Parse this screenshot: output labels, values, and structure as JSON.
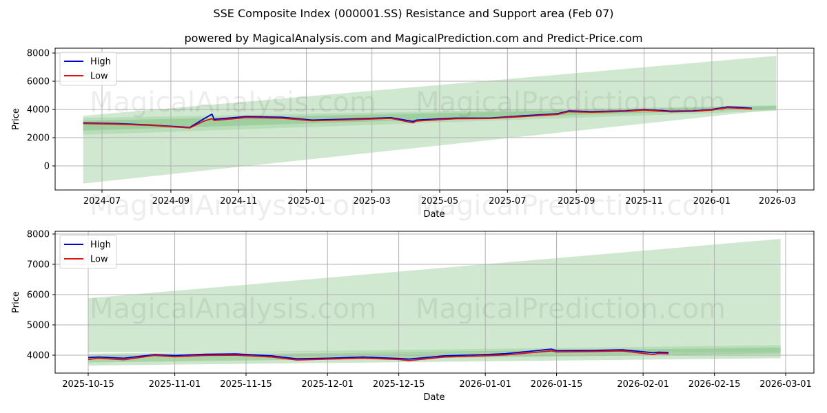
{
  "header": {
    "title": "SSE Composite Index (000001.SS) Resistance and Support area (Feb 07)",
    "subtitle": "powered by MagicalAnalysis.com and MagicalPrediction.com and Predict-Price.com"
  },
  "watermarks": [
    "MagicalAnalysis.com",
    "MagicalPrediction.com"
  ],
  "colors": {
    "high": "#0000cc",
    "low": "#dd1111",
    "band_light": "#a9d5a9",
    "band_dark": "#7fbf7f",
    "grid": "#b0b0b0"
  },
  "chart_data": [
    {
      "type": "line",
      "title": "",
      "xlabel": "Date",
      "ylabel": "Price",
      "x_ticks": [
        "2024-07",
        "2024-09",
        "2024-11",
        "2025-01",
        "2025-03",
        "2025-05",
        "2025-07",
        "2025-09",
        "2025-11",
        "2026-01",
        "2026-03"
      ],
      "y_ticks": [
        0,
        2000,
        4000,
        6000,
        8000
      ],
      "ylim": [
        -1800,
        8300
      ],
      "grid": true,
      "legend": {
        "position": "upper left",
        "entries": [
          "High",
          "Low"
        ]
      },
      "series": [
        {
          "name": "High",
          "color": "#0000cc",
          "x": [
            "2024-06-14",
            "2024-07-15",
            "2024-08-15",
            "2024-09-18",
            "2024-09-30",
            "2024-10-08",
            "2024-10-10",
            "2024-11-08",
            "2024-12-10",
            "2025-01-06",
            "2025-02-10",
            "2025-03-18",
            "2025-04-07",
            "2025-04-10",
            "2025-05-15",
            "2025-06-15",
            "2025-07-15",
            "2025-08-15",
            "2025-08-25",
            "2025-09-15",
            "2025-10-15",
            "2025-11-01",
            "2025-11-25",
            "2025-12-15",
            "2026-01-01",
            "2026-01-15",
            "2026-01-28",
            "2026-02-06"
          ],
          "values": [
            3050,
            3000,
            2900,
            2720,
            3300,
            3670,
            3300,
            3500,
            3450,
            3250,
            3320,
            3420,
            3150,
            3250,
            3390,
            3390,
            3550,
            3700,
            3900,
            3850,
            3900,
            4000,
            3880,
            3900,
            4000,
            4180,
            4150,
            4080
          ]
        },
        {
          "name": "Low",
          "color": "#dd1111",
          "x": [
            "2024-06-14",
            "2024-07-15",
            "2024-08-15",
            "2024-09-18",
            "2024-09-30",
            "2024-10-08",
            "2024-10-10",
            "2024-11-08",
            "2024-12-10",
            "2025-01-06",
            "2025-02-10",
            "2025-03-18",
            "2025-04-07",
            "2025-04-10",
            "2025-05-15",
            "2025-06-15",
            "2025-07-15",
            "2025-08-15",
            "2025-08-25",
            "2025-09-15",
            "2025-10-15",
            "2025-11-01",
            "2025-11-25",
            "2025-12-15",
            "2026-01-01",
            "2026-01-15",
            "2026-01-28",
            "2026-02-06"
          ],
          "values": [
            3000,
            2960,
            2870,
            2690,
            3150,
            3350,
            3220,
            3430,
            3380,
            3200,
            3270,
            3370,
            3050,
            3180,
            3340,
            3360,
            3500,
            3650,
            3840,
            3800,
            3860,
            3960,
            3830,
            3860,
            3960,
            4120,
            4080,
            4040
          ]
        }
      ],
      "bands": [
        {
          "name": "wide-support-resistance",
          "x": [
            "2024-06-14",
            "2026-02-28"
          ],
          "upper": [
            3550,
            7800
          ],
          "lower": [
            -1250,
            4000
          ]
        },
        {
          "name": "mid-band",
          "x": [
            "2024-06-14",
            "2026-02-28"
          ],
          "upper": [
            3400,
            4300
          ],
          "lower": [
            2200,
            3900
          ]
        },
        {
          "name": "inner-band",
          "x": [
            "2024-06-14",
            "2026-02-28"
          ],
          "upper": [
            3200,
            4250
          ],
          "lower": [
            2500,
            4050
          ]
        }
      ]
    },
    {
      "type": "line",
      "title": "",
      "xlabel": "Date",
      "ylabel": "Price",
      "x_ticks": [
        "2025-10-15",
        "2025-11-01",
        "2025-11-15",
        "2025-12-01",
        "2025-12-15",
        "2026-01-01",
        "2026-01-15",
        "2026-02-01",
        "2026-02-15",
        "2026-03-01"
      ],
      "y_ticks": [
        4000,
        5000,
        6000,
        7000,
        8000
      ],
      "ylim": [
        3420,
        8100
      ],
      "grid": true,
      "legend": {
        "position": "upper left",
        "entries": [
          "High",
          "Low"
        ]
      },
      "series": [
        {
          "name": "High",
          "color": "#0000cc",
          "x": [
            "2025-10-15",
            "2025-10-17",
            "2025-10-22",
            "2025-10-28",
            "2025-11-01",
            "2025-11-07",
            "2025-11-13",
            "2025-11-20",
            "2025-11-25",
            "2025-12-01",
            "2025-12-08",
            "2025-12-15",
            "2025-12-17",
            "2025-12-24",
            "2026-01-01",
            "2026-01-05",
            "2026-01-14",
            "2026-01-15",
            "2026-01-22",
            "2026-01-28",
            "2026-02-03",
            "2026-02-04",
            "2026-02-06"
          ],
          "values": [
            3920,
            3940,
            3900,
            4020,
            3990,
            4030,
            4040,
            3980,
            3880,
            3900,
            3940,
            3890,
            3870,
            3980,
            4020,
            4050,
            4200,
            4150,
            4160,
            4180,
            4080,
            4100,
            4090
          ]
        },
        {
          "name": "Low",
          "color": "#dd1111",
          "x": [
            "2025-10-15",
            "2025-10-17",
            "2025-10-22",
            "2025-10-28",
            "2025-11-01",
            "2025-11-07",
            "2025-11-13",
            "2025-11-20",
            "2025-11-25",
            "2025-12-01",
            "2025-12-08",
            "2025-12-15",
            "2025-12-17",
            "2025-12-24",
            "2026-01-01",
            "2026-01-05",
            "2026-01-14",
            "2026-01-15",
            "2026-01-22",
            "2026-01-28",
            "2026-02-03",
            "2026-02-04",
            "2026-02-06"
          ],
          "values": [
            3860,
            3900,
            3850,
            3990,
            3950,
            3990,
            4000,
            3940,
            3840,
            3870,
            3900,
            3860,
            3820,
            3940,
            3980,
            4010,
            4140,
            4110,
            4120,
            4140,
            4020,
            4060,
            4050
          ]
        }
      ],
      "bands": [
        {
          "name": "wide-resistance",
          "x": [
            "2025-10-15",
            "2026-02-28"
          ],
          "upper": [
            5880,
            7840
          ],
          "lower": [
            4100,
            4100
          ]
        },
        {
          "name": "support-band",
          "x": [
            "2025-10-15",
            "2026-02-28"
          ],
          "upper": [
            4050,
            4330
          ],
          "lower": [
            3660,
            3900
          ]
        },
        {
          "name": "inner-band",
          "x": [
            "2025-10-15",
            "2026-02-28"
          ],
          "upper": [
            3980,
            4250
          ],
          "lower": [
            3760,
            4050
          ]
        }
      ]
    }
  ]
}
